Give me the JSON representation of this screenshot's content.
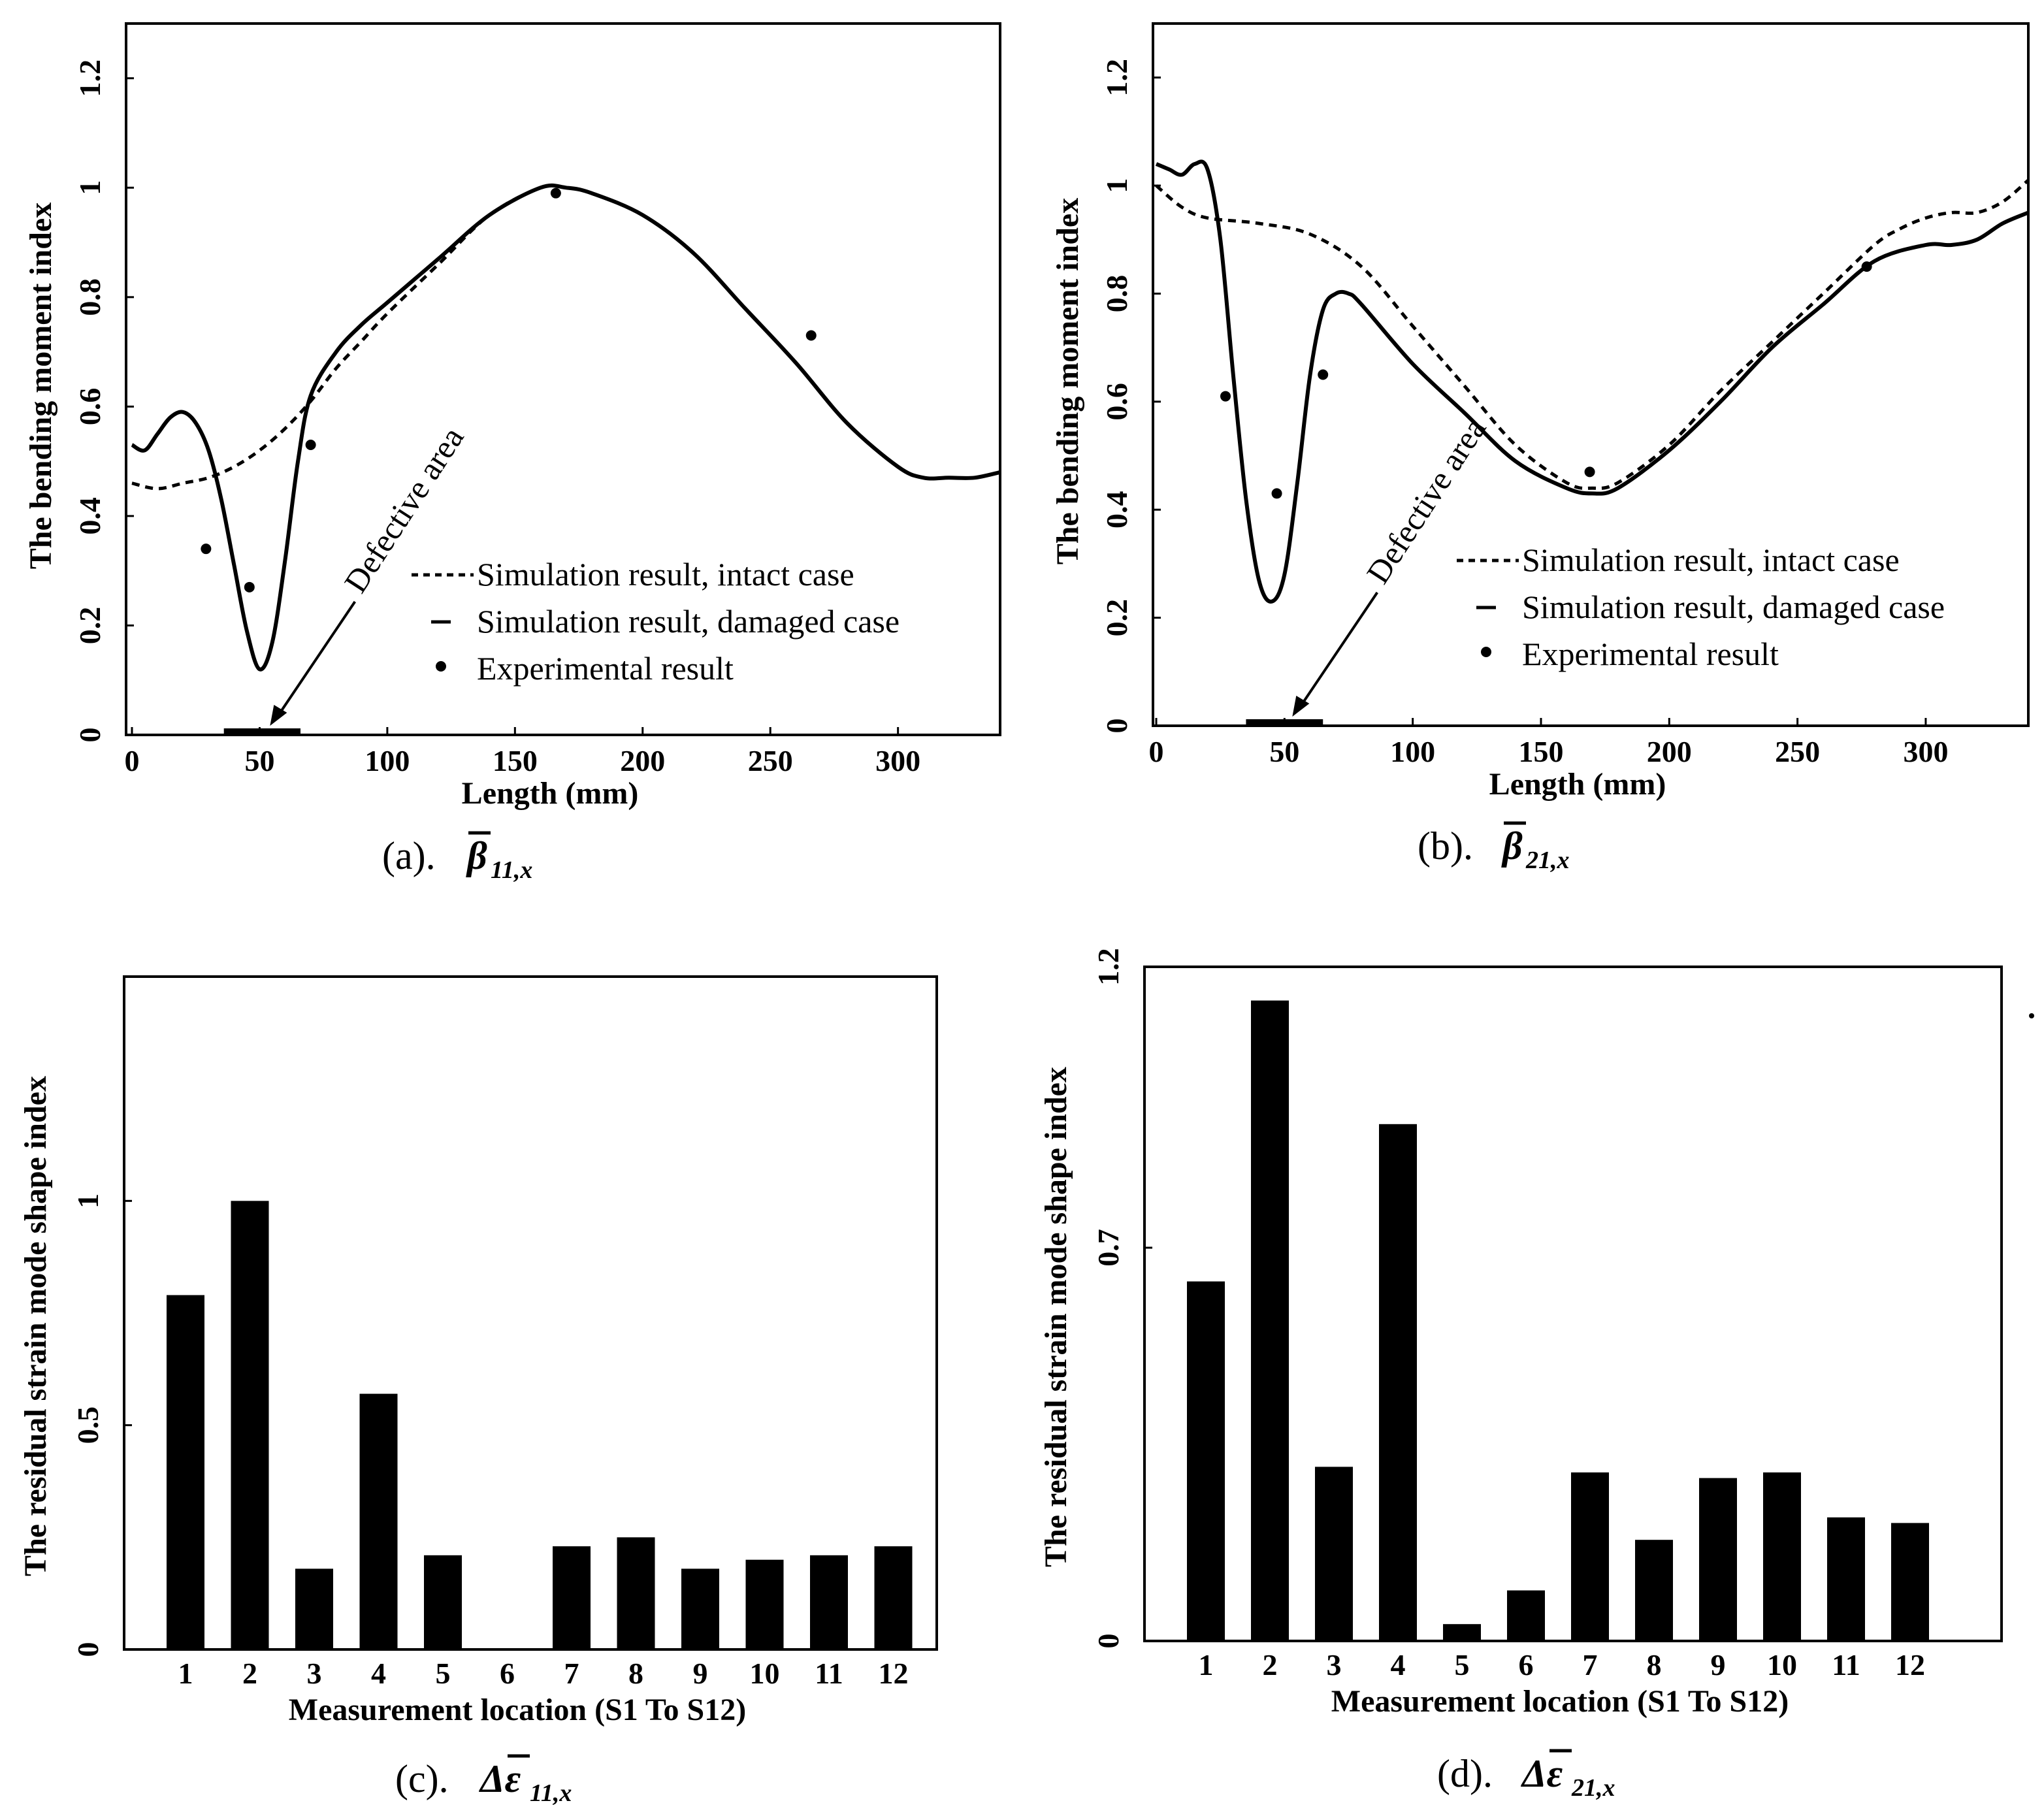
{
  "chart_data": [
    {
      "type": "line",
      "panel": "a",
      "caption_label": "(a).",
      "caption_symbol": "β",
      "caption_sub": "11,x",
      "xlabel": "Length (mm)",
      "ylabel": "The bending moment index",
      "xlim": [
        0,
        340
      ],
      "ylim": [
        0,
        1.3
      ],
      "xticks": [
        "0",
        "50",
        "100",
        "150",
        "200",
        "250",
        "300"
      ],
      "yticks": [
        "0",
        "0.2",
        "0.4",
        "0.6",
        "0.8",
        "1",
        "1.2"
      ],
      "legend": [
        "Simulation result, intact case",
        "Simulation result, damaged case",
        "Experimental result"
      ],
      "annotation": "Defective area",
      "defect_range": [
        36,
        66
      ],
      "series": [
        {
          "name": "Simulation result, intact case",
          "style": "dashed",
          "x": [
            0,
            10,
            20,
            30,
            40,
            50,
            60,
            70,
            80,
            90,
            100,
            120,
            140,
            160,
            170,
            180,
            200,
            220,
            240,
            260,
            280,
            300,
            310,
            320,
            330,
            340
          ],
          "y": [
            0.46,
            0.45,
            0.46,
            0.47,
            0.49,
            0.52,
            0.56,
            0.61,
            0.67,
            0.72,
            0.77,
            0.86,
            0.95,
            1.0,
            1.0,
            0.99,
            0.95,
            0.88,
            0.78,
            0.68,
            0.57,
            0.49,
            0.47,
            0.47,
            0.47,
            0.48
          ]
        },
        {
          "name": "Simulation result, damaged case",
          "style": "solid",
          "x": [
            0,
            5,
            10,
            15,
            20,
            25,
            30,
            35,
            40,
            45,
            50,
            55,
            60,
            65,
            70,
            80,
            90,
            100,
            120,
            140,
            160,
            170,
            180,
            200,
            220,
            240,
            260,
            280,
            300,
            310,
            320,
            330,
            340
          ],
          "y": [
            0.53,
            0.52,
            0.55,
            0.58,
            0.59,
            0.57,
            0.52,
            0.43,
            0.31,
            0.19,
            0.12,
            0.17,
            0.32,
            0.5,
            0.62,
            0.7,
            0.75,
            0.79,
            0.87,
            0.95,
            1.0,
            1.0,
            0.99,
            0.95,
            0.88,
            0.78,
            0.68,
            0.57,
            0.49,
            0.47,
            0.47,
            0.47,
            0.48
          ]
        },
        {
          "name": "Experimental result",
          "style": "markers",
          "x": [
            29,
            46,
            70,
            166,
            266
          ],
          "y": [
            0.34,
            0.27,
            0.53,
            0.99,
            0.73
          ]
        }
      ]
    },
    {
      "type": "line",
      "panel": "b",
      "caption_label": "(b).",
      "caption_symbol": "β",
      "caption_sub": "21,x",
      "xlabel": "Length (mm)",
      "ylabel": "The bending moment index",
      "xlim": [
        0,
        340
      ],
      "ylim": [
        0,
        1.3
      ],
      "xticks": [
        "0",
        "50",
        "100",
        "150",
        "200",
        "250",
        "300"
      ],
      "yticks": [
        "0",
        "0.2",
        "0.4",
        "0.6",
        "0.8",
        "1",
        "1.2"
      ],
      "legend": [
        "Simulation result, intact case",
        "Simulation result, damaged case",
        "Experimental result"
      ],
      "annotation": "Defective area",
      "defect_range": [
        35,
        65
      ],
      "series": [
        {
          "name": "Simulation result, intact case",
          "style": "dashed",
          "x": [
            0,
            10,
            20,
            40,
            60,
            80,
            100,
            120,
            140,
            160,
            170,
            180,
            200,
            220,
            240,
            260,
            280,
            290,
            300,
            310,
            320,
            330,
            340
          ],
          "y": [
            1.0,
            0.96,
            0.94,
            0.93,
            0.91,
            0.85,
            0.74,
            0.63,
            0.52,
            0.45,
            0.44,
            0.45,
            0.52,
            0.62,
            0.71,
            0.8,
            0.89,
            0.92,
            0.94,
            0.95,
            0.95,
            0.97,
            1.01
          ]
        },
        {
          "name": "Simulation result, damaged case",
          "style": "solid",
          "x": [
            0,
            5,
            10,
            15,
            20,
            25,
            30,
            35,
            40,
            45,
            50,
            55,
            60,
            65,
            70,
            75,
            80,
            100,
            120,
            140,
            160,
            170,
            180,
            200,
            220,
            240,
            260,
            280,
            300,
            310,
            320,
            330,
            340
          ],
          "y": [
            1.04,
            1.03,
            1.02,
            1.04,
            1.03,
            0.9,
            0.65,
            0.42,
            0.27,
            0.23,
            0.28,
            0.45,
            0.65,
            0.77,
            0.8,
            0.8,
            0.78,
            0.67,
            0.58,
            0.49,
            0.44,
            0.43,
            0.44,
            0.51,
            0.6,
            0.7,
            0.78,
            0.86,
            0.89,
            0.89,
            0.9,
            0.93,
            0.95
          ]
        },
        {
          "name": "Experimental result",
          "style": "markers",
          "x": [
            27,
            47,
            65,
            169,
            277
          ],
          "y": [
            0.61,
            0.43,
            0.65,
            0.47,
            0.85
          ]
        }
      ]
    },
    {
      "type": "bar",
      "panel": "c",
      "caption_label": "(c).",
      "caption_symbol": "Δε",
      "caption_sub": "11,x",
      "xlabel": "Measurement location (S1 To S12)",
      "ylabel": "The residual strain mode shape index",
      "ylim": [
        0,
        1.5
      ],
      "yticks": [
        "0",
        "0.5",
        "1"
      ],
      "categories": [
        "1",
        "2",
        "3",
        "4",
        "5",
        "6",
        "7",
        "8",
        "9",
        "10",
        "11",
        "12"
      ],
      "values": [
        0.79,
        1.0,
        0.18,
        0.57,
        0.21,
        0.0,
        0.23,
        0.25,
        0.18,
        0.2,
        0.21,
        0.23
      ]
    },
    {
      "type": "bar",
      "panel": "d",
      "caption_label": "(d).",
      "caption_symbol": "Δε",
      "caption_sub": "21,x",
      "xlabel": "Measurement location (S1 To S12)",
      "ylabel": "The residual strain mode shape index",
      "ylim": [
        0,
        1.2
      ],
      "yticks": [
        "0",
        "0.7",
        "1.2"
      ],
      "categories": [
        "1",
        "2",
        "3",
        "4",
        "5",
        "6",
        "7",
        "8",
        "9",
        "10",
        "11",
        "12"
      ],
      "values": [
        0.64,
        1.14,
        0.31,
        0.92,
        0.03,
        0.09,
        0.3,
        0.18,
        0.29,
        0.3,
        0.22,
        0.21
      ]
    }
  ]
}
